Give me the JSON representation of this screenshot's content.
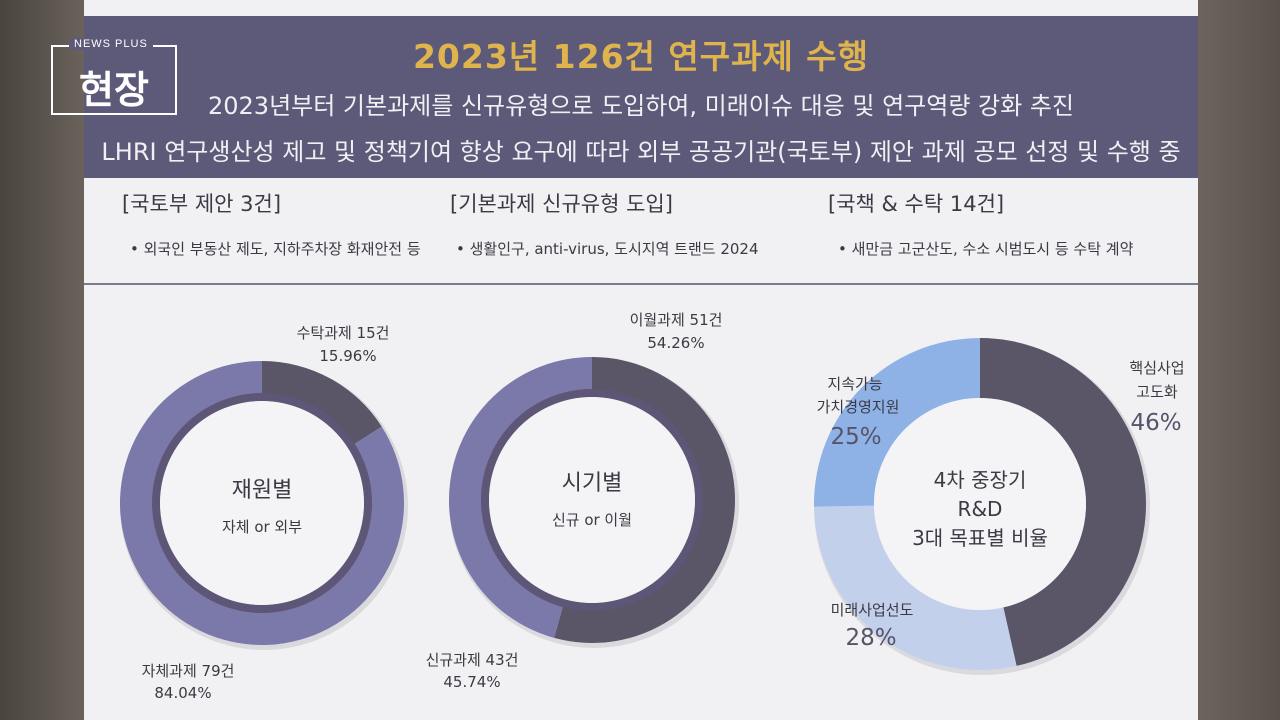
{
  "overlay": {
    "brand_top": "NEWS PLUS",
    "brand_main": "현장"
  },
  "slide": {
    "title": "2023년 126건 연구과제 수행",
    "line1": "2023년부터 기본과제를 신규유형으로 도입하여, 미래이슈 대응 및 연구역량 강화 추진",
    "line2": "LHRI 연구생산성 제고 및 정책기여 향상 요구에 따라 외부 공공기관(국토부) 제안 과제 공모 선정 및 수행 중",
    "columns": [
      {
        "heading": "[국토부 제안 3건]",
        "bullet": "• 외국인 부동산 제도, 지하주차장 화재안전 등"
      },
      {
        "heading": "[기본과제 신규유형 도입]",
        "bullet": "• 생활인구, anti-virus, 도시지역 트랜드 2024"
      },
      {
        "heading": "[국책 & 수탁 14건]",
        "bullet": "• 새만금 고군산도, 수소 시범도시 등 수탁 계약"
      }
    ]
  },
  "colors": {
    "banner": "#5d5a79",
    "title": "#e0b44c",
    "dark": "#5b5568",
    "medium": "#7b78aa",
    "light_blue": "#8fb2e6",
    "pale_blue": "#c3d0ec"
  },
  "chart_data": [
    {
      "type": "pie",
      "center_title": "재원별",
      "center_subtitle": "자체 or 외부",
      "slices": [
        {
          "name": "수탁과제",
          "count_label": "15건",
          "value": 15.96,
          "value_label": "15.96%",
          "color": "#5b5568"
        },
        {
          "name": "자체과제",
          "count_label": "79건",
          "value": 84.04,
          "value_label": "84.04%",
          "color": "#7b78aa"
        }
      ]
    },
    {
      "type": "pie",
      "center_title": "시기별",
      "center_subtitle": "신규 or 이월",
      "slices": [
        {
          "name": "이월과제",
          "count_label": "51건",
          "value": 54.26,
          "value_label": "54.26%",
          "color": "#5b5568"
        },
        {
          "name": "신규과제",
          "count_label": "43건",
          "value": 45.74,
          "value_label": "45.74%",
          "color": "#7b78aa"
        }
      ]
    },
    {
      "type": "pie",
      "center_lines": [
        "4차 중장기",
        "R&D",
        "3대 목표별 비율"
      ],
      "slices": [
        {
          "name_lines": [
            "핵심사업",
            "고도화"
          ],
          "value": 46,
          "value_label": "46%",
          "color": "#5b5568"
        },
        {
          "name_lines": [
            "미래사업선도"
          ],
          "value": 28,
          "value_label": "28%",
          "color": "#c3d0ec"
        },
        {
          "name_lines": [
            "지속가능",
            "가치경영지원"
          ],
          "value": 25,
          "value_label": "25%",
          "color": "#8fb2e6"
        }
      ]
    }
  ]
}
